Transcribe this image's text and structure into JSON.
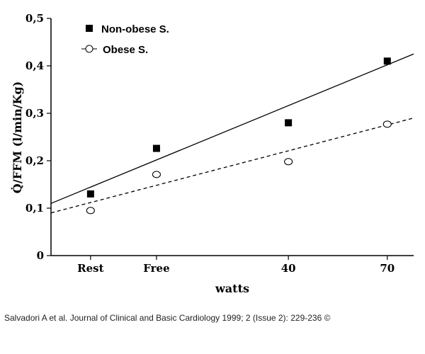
{
  "chart_data": {
    "type": "scatter",
    "xlabel": "watts",
    "ylabel": "Q̇/FFM (l/min/Kg)",
    "categories": [
      "Rest",
      "Free",
      "40",
      "70"
    ],
    "x_positions": [
      -30,
      -10,
      30,
      60
    ],
    "xlim": [
      -42,
      68
    ],
    "ylim": [
      0,
      0.5
    ],
    "yticks": [
      "0",
      "0,1",
      "0,2",
      "0,3",
      "0,4",
      "0,5"
    ],
    "ytick_values": [
      0,
      0.1,
      0.2,
      0.3,
      0.4,
      0.5
    ],
    "legend_position": "top-left",
    "series": [
      {
        "name": "Non-obese S.",
        "marker": "filled-square",
        "line": "solid",
        "values": [
          0.13,
          0.226,
          0.28,
          0.41
        ],
        "fit_endpoints": [
          0.11,
          0.425
        ]
      },
      {
        "name": "Obese S.",
        "marker": "open-circle",
        "line": "dashed",
        "values": [
          0.095,
          0.171,
          0.198,
          0.277
        ],
        "fit_endpoints": [
          0.09,
          0.29
        ]
      }
    ]
  },
  "caption": "Salvadori A et al. Journal of Clinical and Basic Cardiology 1999; 2 (Issue 2): 229-236 ©"
}
